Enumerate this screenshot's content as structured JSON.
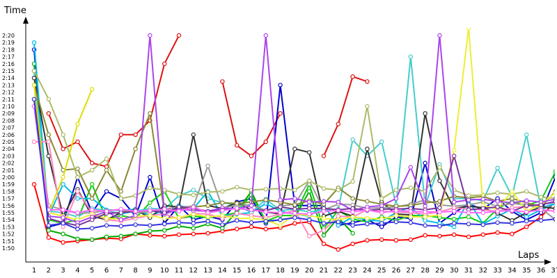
{
  "chart_data": {
    "type": "line",
    "title": "",
    "xlabel": "Laps",
    "ylabel": "Time",
    "x": [
      1,
      2,
      3,
      4,
      5,
      6,
      7,
      8,
      9,
      10,
      11,
      12,
      13,
      14,
      15,
      16,
      17,
      18,
      19,
      20,
      21,
      22,
      23,
      24,
      25,
      26,
      27,
      28,
      29,
      30,
      31,
      32,
      33,
      34,
      35,
      36,
      37
    ],
    "y_tick_labels": [
      "1:50",
      "1:51",
      "1:52",
      "1:53",
      "1:54",
      "1:55",
      "1:56",
      "1:57",
      "1:58",
      "1:59",
      "2:00",
      "2:01",
      "2:02",
      "2:03",
      "2:04",
      "2:05",
      "2:06",
      "2:07",
      "2:08",
      "2:09",
      "2:10",
      "2:11",
      "2:12",
      "2:13",
      "2:14",
      "2:15",
      "2:16",
      "2:17",
      "2:18",
      "2:19",
      "2:20"
    ],
    "ylim_seconds": [
      110,
      140
    ],
    "y_unit": "seconds",
    "grid": false,
    "legend": "none",
    "series": [
      {
        "color": "#ff0000",
        "values": [
          119,
          111.5,
          110.8,
          111,
          111.2,
          111.4,
          111.3,
          112,
          111.8,
          111.7,
          111.9,
          112,
          112.1,
          112.4,
          112.7,
          113,
          112.7,
          112.9,
          113.5,
          113.7,
          110.6,
          109.8,
          110.6,
          111.1,
          111.2,
          111.1,
          111.2,
          111.8,
          111.7,
          111.9,
          111.6,
          111.9,
          112.2,
          112,
          113,
          114.4,
          116.6
        ]
      },
      {
        "color": "#dd1111",
        "values": [
          null,
          129,
          124,
          125,
          122,
          121.5,
          126,
          126,
          128,
          136,
          140,
          null,
          null,
          133.5,
          124.5,
          123,
          125,
          129,
          null,
          null,
          123,
          127.5,
          134.2,
          133.5,
          null,
          null,
          null,
          null,
          null,
          null,
          null,
          null,
          null,
          null,
          null,
          null,
          null
        ]
      },
      {
        "color": "#0000cc",
        "values": [
          138,
          113,
          113.5,
          120,
          115,
          118,
          117,
          114.5,
          120,
          113.5,
          116,
          114,
          114.5,
          114,
          116.5,
          117,
          113.5,
          133,
          116,
          116,
          116,
          113.2,
          113.6,
          114,
          113,
          114.4,
          114.2,
          122,
          113.5,
          115,
          116.2,
          115.5,
          117,
          115.2,
          114,
          115,
          120
        ]
      },
      {
        "color": "#00aa00",
        "values": [
          136,
          112.5,
          112,
          111.3,
          111.2,
          111.6,
          111.7,
          112,
          112.4,
          112.5,
          113.1,
          112.8,
          113.4,
          112.8,
          115.2,
          118,
          113.7,
          114,
          114.3,
          118,
          111.8,
          114.3,
          112.1,
          null,
          null,
          null,
          null,
          null,
          null,
          null,
          null,
          null,
          null,
          null,
          null,
          null,
          null
        ]
      },
      {
        "color": "#11cc11",
        "values": [
          135,
          114,
          113.5,
          114,
          119,
          114,
          114.6,
          114.2,
          116.4,
          118,
          114.2,
          114.5,
          114.3,
          114.6,
          115,
          117.5,
          113.8,
          114.6,
          114.6,
          119,
          112.8,
          115.3,
          114.1,
          113.7,
          114.4,
          113.9,
          114.6,
          114.6,
          114.3,
          114.1,
          114.4,
          113.5,
          115.6,
          116.6,
          116,
          116.7,
          120.8
        ]
      },
      {
        "color": "#00bbee",
        "values": [
          139,
          114.5,
          119,
          117,
          117,
          115.4,
          115.3,
          115.5,
          114.6,
          115.3,
          116,
          115.6,
          118,
          114.5,
          114.8,
          115,
          116.3,
          115.2,
          114.8,
          114.5,
          116,
          113.2,
          114.4,
          114,
          113.8,
          115,
          115.8,
          113.9,
          113.5,
          113,
          116.7,
          113.4,
          114.5,
          115.5,
          114.4,
          115.4,
          116.3
        ]
      },
      {
        "color": "#44cccc",
        "values": [
          135,
          115.2,
          115,
          114.4,
          115.6,
          115.3,
          114.8,
          115.2,
          115.6,
          115.5,
          117.4,
          118.2,
          117,
          116.4,
          116.1,
          115,
          116.9,
          115.3,
          115.5,
          115.1,
          115.4,
          115.5,
          125.3,
          123,
          125,
          116.1,
          137,
          116,
          121.8,
          117,
          117,
          116.7,
          121.3,
          117.3,
          126,
          115.6,
          116.5
        ]
      },
      {
        "color": "#333333",
        "values": [
          134,
          123,
          114.5,
          118.3,
          114.5,
          114,
          115,
          115.4,
          114.3,
          116,
          115.8,
          126,
          116,
          115.6,
          116.4,
          115.4,
          115.1,
          114.8,
          124,
          123.5,
          114.5,
          115.2,
          114.5,
          124,
          116.5,
          114.8,
          114.7,
          129,
          119.5,
          115.6,
          115.9,
          115.7,
          114.9,
          113.9,
          115,
          115.8,
          115.6
        ]
      },
      {
        "color": "#999999",
        "values": [
          131,
          116,
          115.4,
          114.9,
          115,
          115.3,
          115.4,
          115,
          115.1,
          115.5,
          115.8,
          115.9,
          121.6,
          115.7,
          116,
          116.1,
          115.3,
          115.9,
          116.2,
          119.5,
          115.4,
          116.2,
          116.1,
          115.6,
          115.7,
          115.8,
          116.2,
          116.8,
          116.1,
          115.9,
          116.1,
          116.5,
          115.9,
          116.3,
          116.1,
          115.6,
          114
        ]
      },
      {
        "color": "#888833",
        "values": [
          133,
          126,
          121,
          121.2,
          117,
          121,
          118,
          124,
          129,
          115,
          115.5,
          115.8,
          116,
          116.4,
          116.3,
          116.5,
          116.8,
          116.5,
          116.1,
          116.7,
          116.2,
          118.5,
          117,
          116.6,
          116.2,
          115.9,
          116,
          116.4,
          116.6,
          117.3,
          117.1,
          117.3,
          116.6,
          117,
          116.4,
          115.8,
          118
        ]
      },
      {
        "color": "#aabb66",
        "values": [
          135,
          131,
          126,
          120,
          121,
          122.6,
          117,
          117.4,
          118.5,
          118.2,
          117.6,
          117.5,
          117.9,
          118,
          118.6,
          118.2,
          118.3,
          118.4,
          118.2,
          119.5,
          118.4,
          118.2,
          119.4,
          130,
          117,
          118.2,
          118.5,
          118,
          121.4,
          118.2,
          117.4,
          117.5,
          117.8,
          117.6,
          118,
          117.2,
          117
        ]
      },
      {
        "color": "#ff88bb",
        "values": [
          125,
          125,
          113,
          118,
          115,
          114,
          113.8,
          114.2,
          114.6,
          114.8,
          114.1,
          114.9,
          114.8,
          114.2,
          114.9,
          114.6,
          114.3,
          114.8,
          115.3,
          111.7,
          112.5,
          114.5,
          114.4,
          115.4,
          115.2,
          115.1,
          115,
          114.8,
          115.1,
          115.7,
          115.5,
          115.4,
          115.2,
          115.7,
          115.9,
          116.2,
          116.5
        ]
      },
      {
        "color": "#dddd00",
        "values": [
          133,
          115,
          120,
          127.5,
          132.4,
          null,
          null,
          null,
          null,
          null,
          null,
          null,
          null,
          null,
          null,
          null,
          null,
          null,
          null,
          null,
          null,
          null,
          null,
          null,
          null,
          null,
          null,
          null,
          null,
          null,
          null,
          null,
          null,
          null,
          null,
          null,
          null
        ]
      },
      {
        "color": "#eeee33",
        "values": [
          null,
          115,
          114.5,
          114,
          114.8,
          114.2,
          114.1,
          114.5,
          114.6,
          114.2,
          114.3,
          114.8,
          114.4,
          114.6,
          114.2,
          114.2,
          114,
          113.2,
          114.8,
          114.6,
          114.2,
          114,
          114.4,
          114.2,
          114.1,
          114.6,
          114.4,
          114.4,
          114.7,
          123.8,
          141,
          116,
          115.5,
          118,
          115.2,
          116.2,
          117.8
        ]
      },
      {
        "color": "#aa44ee",
        "values": [
          130,
          114.5,
          114.3,
          113.6,
          114.4,
          115.2,
          114,
          114.6,
          140,
          114.8,
          115.5,
          115.3,
          115.2,
          115.7,
          115.5,
          116,
          140,
          116.8,
          117,
          116.5,
          116.6,
          116.5,
          115.3,
          115.8,
          116,
          117,
          121.4,
          115.9,
          140,
          116.5,
          116.8,
          116.9,
          116.6,
          116.4,
          116.7,
          116.5,
          116.9
        ]
      },
      {
        "color": "#773399",
        "values": [
          131,
          114.2,
          113.6,
          113.2,
          114,
          114.9,
          115,
          115.2,
          115.3,
          115,
          115.8,
          115.6,
          115.2,
          115.4,
          115.6,
          115.4,
          115.3,
          115.8,
          115.5,
          115.6,
          115.6,
          115.4,
          115.6,
          115.3,
          115.5,
          115.5,
          115.6,
          115.4,
          115.7,
          123,
          115.4,
          115.6,
          115.8,
          115.2,
          116,
          116.1,
          116.6
        ]
      },
      {
        "color": "#ff66ff",
        "values": [
          130,
          115.4,
          115.4,
          115,
          115.4,
          115.2,
          115.5,
          115.2,
          115.3,
          115.5,
          115.2,
          115.8,
          115,
          115.3,
          115.6,
          115.4,
          115.1,
          115,
          114.9,
          114.8,
          115.2,
          115.3,
          115.1,
          115.4,
          115,
          115.3,
          115.2,
          115.1,
          115.1,
          115.2,
          115,
          115,
          115.2,
          115.3,
          115.1,
          115.4,
          115.2
        ]
      },
      {
        "color": "#3333dd",
        "values": [
          131,
          113.2,
          113.5,
          112.7,
          112.8,
          113.2,
          113.1,
          113.3,
          113.2,
          113.4,
          113.6,
          113.5,
          113.8,
          113.3,
          113.9,
          113.6,
          113.8,
          114,
          114.3,
          114,
          113.5,
          113.7,
          113.2,
          113.4,
          113.5,
          113.7,
          113.6,
          113.2,
          113.1,
          113.5,
          113.4,
          113.3,
          113.6,
          113.5,
          113.8,
          113.9,
          114.1
        ]
      }
    ]
  }
}
